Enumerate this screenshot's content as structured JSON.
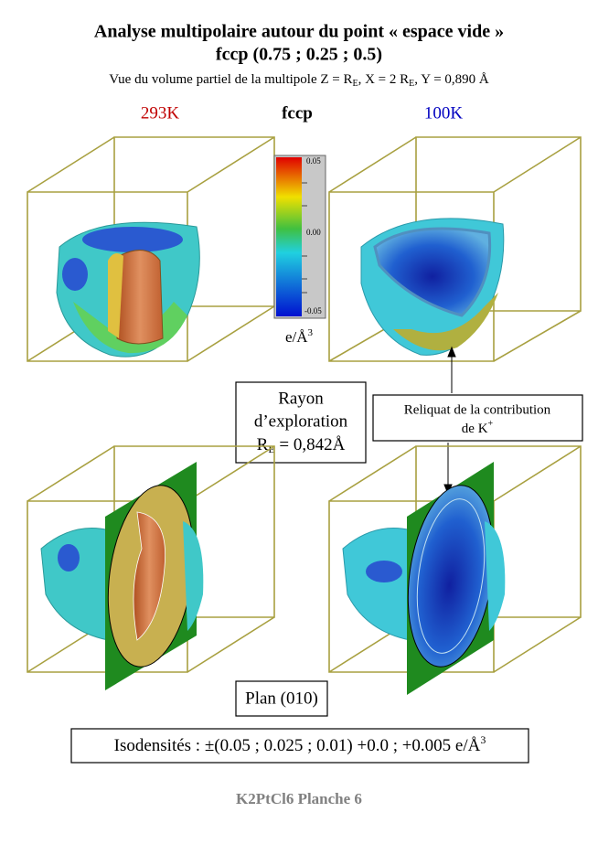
{
  "header": {
    "title": "Analyse multipolaire autour du point « espace vide »",
    "subtitle": "fccp (0.75 ; 0.25 ; 0.5)",
    "view": [
      "Vue du volume partiel de la multipole Z = R",
      "E",
      ",  X = 2 R",
      "E",
      ",  Y = 0,890 Å"
    ]
  },
  "labels": {
    "left": "293K",
    "center": "fccp",
    "right": "100K"
  },
  "colorbar": {
    "ticks": [
      "0.05",
      "0.00",
      "-0.05"
    ],
    "unit": [
      "e/Å",
      "3"
    ]
  },
  "radius_box": {
    "lines": [
      "Rayon",
      "d’exploration"
    ],
    "value": [
      "R",
      "E",
      " = 0,842Å"
    ]
  },
  "note_box": {
    "lines": [
      "Reliquat de la contribution",
      "de K"
    ],
    "sup": "+"
  },
  "plane_box": "Plan (010)",
  "isodensity_box": [
    "Isodensités : ±(0.05 ; 0.025 ; 0.01) +0.0 ; +0.005 e/Å",
    "3"
  ],
  "footer": "K2PtCl6 Planche 6"
}
